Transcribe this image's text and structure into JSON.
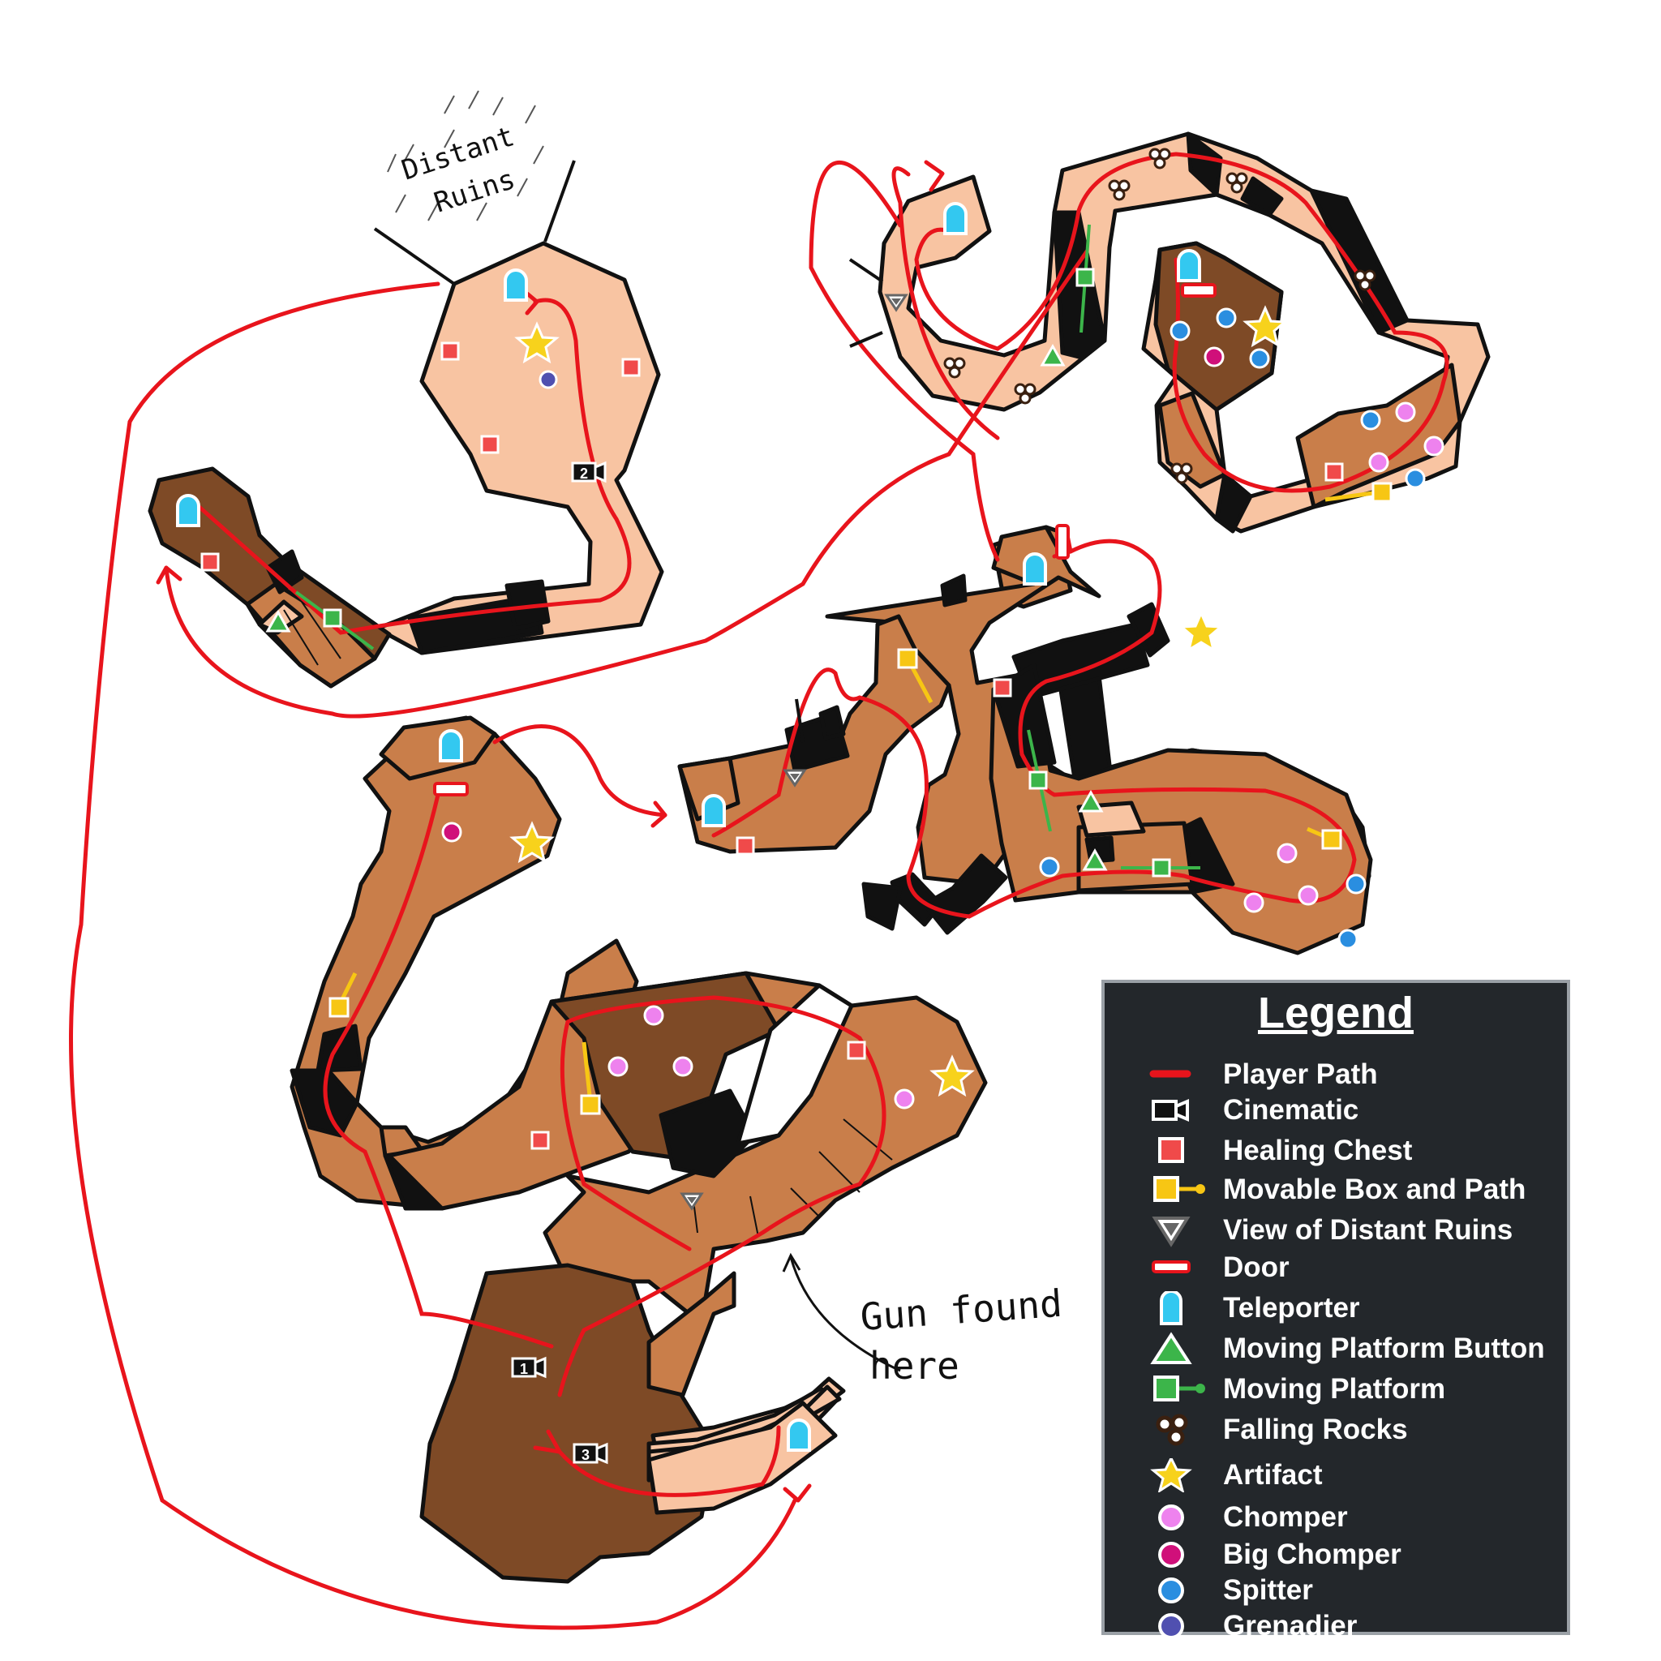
{
  "map": {
    "annotations": {
      "distant_ruins_line1": "Distant",
      "distant_ruins_line2": "Ruins",
      "gun_line1": "Gun found",
      "gun_line2": "here"
    },
    "cinematic_numbers": [
      "1",
      "2",
      "3"
    ]
  },
  "legend": {
    "title": "Legend",
    "items": [
      {
        "icon": "player-path",
        "label": "Player Path"
      },
      {
        "icon": "cinematic",
        "label": "Cinematic"
      },
      {
        "icon": "healing-chest",
        "label": "Healing Chest"
      },
      {
        "icon": "movable-box-path",
        "label": "Movable Box and Path"
      },
      {
        "icon": "view-distant-ruins",
        "label": "View of Distant Ruins"
      },
      {
        "icon": "door",
        "label": "Door"
      },
      {
        "icon": "teleporter",
        "label": "Teleporter"
      },
      {
        "icon": "moving-platform-button",
        "label": "Moving Platform Button"
      },
      {
        "icon": "moving-platform",
        "label": "Moving Platform"
      },
      {
        "icon": "falling-rocks",
        "label": "Falling Rocks"
      },
      {
        "icon": "artifact",
        "label": "Artifact"
      },
      {
        "icon": "chomper",
        "label": "Chomper"
      },
      {
        "icon": "big-chomper",
        "label": "Big Chomper"
      },
      {
        "icon": "spitter",
        "label": "Spitter"
      },
      {
        "icon": "grenadier",
        "label": "Grenadier"
      }
    ]
  },
  "colors": {
    "path": "#e8141c",
    "light_floor": "#f8c4a2",
    "mid_floor": "#c97e4a",
    "dark_floor": "#7e4a26",
    "chest": "#f04a4a",
    "box": "#f7c614",
    "teleporter": "#33c8f0",
    "platform": "#3cb54a",
    "artifact": "#f7d21c",
    "chomper": "#ee82ee",
    "big_chomper": "#d0107a",
    "spitter": "#2a8ee0",
    "grenadier": "#5050b0"
  }
}
